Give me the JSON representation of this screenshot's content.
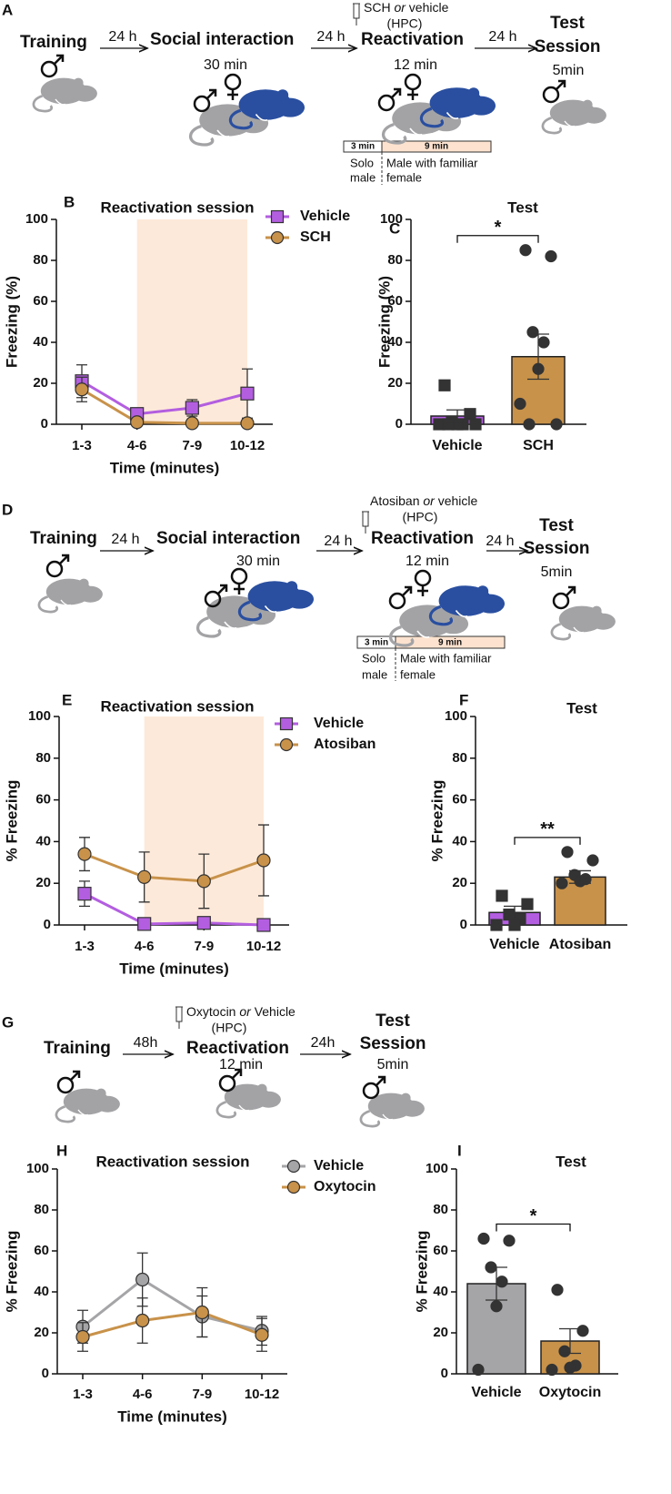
{
  "diagrams": [
    {
      "panel": "A",
      "stages": [
        "Training",
        "Social interaction",
        "Reactivation"
      ],
      "test_stage": [
        "Test",
        "Session"
      ],
      "intervals": [
        "24 h",
        "24 h",
        "24 h"
      ],
      "durations": [
        "30 min",
        "12 min",
        "5min"
      ],
      "injection": [
        "SCH",
        "or",
        "vehicle",
        "(HPC)"
      ],
      "timeline": {
        "segments": [
          "3 min",
          "9 min"
        ],
        "solo": [
          "Solo",
          "male"
        ],
        "paired": [
          "Male with familiar",
          "female"
        ]
      }
    },
    {
      "panel": "D",
      "stages": [
        "Training",
        "Social interaction",
        "Reactivation"
      ],
      "test_stage": [
        "Test",
        "Session"
      ],
      "intervals": [
        "24 h",
        "24 h",
        "24 h"
      ],
      "durations": [
        "30 min",
        "12 min",
        "5min"
      ],
      "injection": [
        "Atosiban",
        "or",
        "vehicle",
        "(HPC)"
      ],
      "timeline": {
        "segments": [
          "3 min",
          "9 min"
        ],
        "solo": [
          "Solo",
          "male"
        ],
        "paired": [
          "Male with familiar",
          "female"
        ]
      }
    },
    {
      "panel": "G",
      "stages": [
        "Training",
        "Reactivation"
      ],
      "test_stage": [
        "Test",
        "Session"
      ],
      "intervals": [
        "48h",
        "24h"
      ],
      "durations": [
        "12 min",
        "5min"
      ],
      "injection": [
        "Oxytocin",
        "or",
        "Vehicle",
        "(HPC)"
      ]
    }
  ],
  "chart_data": [
    {
      "type": "line",
      "panel": "B",
      "title": "Reactivation session",
      "categories": [
        "1-3",
        "4-6",
        "7-9",
        "10-12"
      ],
      "x_label": "Time (minutes)",
      "y_label": "Freezing (%)",
      "ylim": [
        0,
        100
      ],
      "yticks": [
        0,
        20,
        40,
        60,
        80,
        100
      ],
      "shaded_categories": [
        1,
        3
      ],
      "shade_color": "#fde9d9",
      "series": [
        {
          "name": "Vehicle",
          "color": "#b35ee0",
          "marker": "square",
          "values": [
            21,
            5,
            8,
            15
          ],
          "errors": [
            8,
            3,
            4,
            12
          ]
        },
        {
          "name": "SCH",
          "color": "#c8924a",
          "marker": "circle",
          "values": [
            17,
            1,
            0.5,
            0.5
          ],
          "errors": [
            6,
            1,
            1,
            1
          ]
        }
      ]
    },
    {
      "type": "bar",
      "panel": "C",
      "title": "Test",
      "y_label": "Freezing (%)",
      "categories": [
        "Vehicle",
        "SCH"
      ],
      "values": [
        4,
        33
      ],
      "errors": [
        3,
        11
      ],
      "colors": [
        "#b35ee0",
        "#c8924a"
      ],
      "point_markers": [
        "square",
        "circle"
      ],
      "points": [
        [
          19,
          5,
          1,
          0,
          0,
          0,
          0,
          0
        ],
        [
          85,
          82,
          45,
          40,
          27,
          10,
          0,
          0
        ]
      ],
      "significance": "*",
      "ylim": [
        0,
        100
      ],
      "yticks": [
        0,
        20,
        40,
        60,
        80,
        100
      ]
    },
    {
      "type": "line",
      "panel": "E",
      "title": "Reactivation session",
      "categories": [
        "1-3",
        "4-6",
        "7-9",
        "10-12"
      ],
      "x_label": "Time (minutes)",
      "y_label": "% Freezing",
      "ylim": [
        0,
        100
      ],
      "yticks": [
        0,
        20,
        40,
        60,
        80,
        100
      ],
      "shaded_categories": [
        1,
        3
      ],
      "shade_color": "#fde9d9",
      "series": [
        {
          "name": "Vehicle",
          "color": "#b35ee0",
          "marker": "square",
          "values": [
            15,
            0.5,
            1,
            0
          ],
          "errors": [
            6,
            1,
            1,
            1
          ]
        },
        {
          "name": "Atosiban",
          "color": "#c8924a",
          "marker": "circle",
          "values": [
            34,
            23,
            21,
            31
          ],
          "errors": [
            8,
            12,
            13,
            17
          ]
        }
      ]
    },
    {
      "type": "bar",
      "panel": "F",
      "title": "Test",
      "y_label": "% Freezing",
      "categories": [
        "Vehicle",
        "Atosiban"
      ],
      "values": [
        6,
        23
      ],
      "errors": [
        3,
        3
      ],
      "colors": [
        "#b35ee0",
        "#c8924a"
      ],
      "point_markers": [
        "square",
        "circle"
      ],
      "points": [
        [
          14,
          10,
          5,
          3,
          0,
          0
        ],
        [
          35,
          31,
          24,
          22,
          21,
          20
        ]
      ],
      "significance": "**",
      "ylim": [
        0,
        100
      ],
      "yticks": [
        0,
        20,
        40,
        60,
        80,
        100
      ]
    },
    {
      "type": "line",
      "panel": "H",
      "title": "Reactivation session",
      "categories": [
        "1-3",
        "4-6",
        "7-9",
        "10-12"
      ],
      "x_label": "Time (minutes)",
      "y_label": "% Freezing",
      "ylim": [
        0,
        100
      ],
      "yticks": [
        0,
        20,
        40,
        60,
        80,
        100
      ],
      "series": [
        {
          "name": "Vehicle",
          "color": "#a5a5a8",
          "marker": "circle",
          "values": [
            23,
            46,
            28,
            21
          ],
          "errors": [
            8,
            13,
            10,
            7
          ]
        },
        {
          "name": "Oxytocin",
          "color": "#c8924a",
          "marker": "circle",
          "values": [
            18,
            26,
            30,
            19
          ],
          "errors": [
            7,
            11,
            12,
            8
          ]
        }
      ]
    },
    {
      "type": "bar",
      "panel": "I",
      "title": "Test",
      "y_label": "% Freezing",
      "categories": [
        "Vehicle",
        "Oxytocin"
      ],
      "values": [
        44,
        16
      ],
      "errors": [
        8,
        6
      ],
      "colors": [
        "#a5a5a8",
        "#c8924a"
      ],
      "point_markers": [
        "circle",
        "circle"
      ],
      "points": [
        [
          66,
          65,
          52,
          45,
          33,
          2
        ],
        [
          41,
          21,
          11,
          4,
          3,
          2
        ]
      ],
      "significance": "*",
      "ylim": [
        0,
        100
      ],
      "yticks": [
        0,
        20,
        40,
        60,
        80,
        100
      ]
    }
  ]
}
